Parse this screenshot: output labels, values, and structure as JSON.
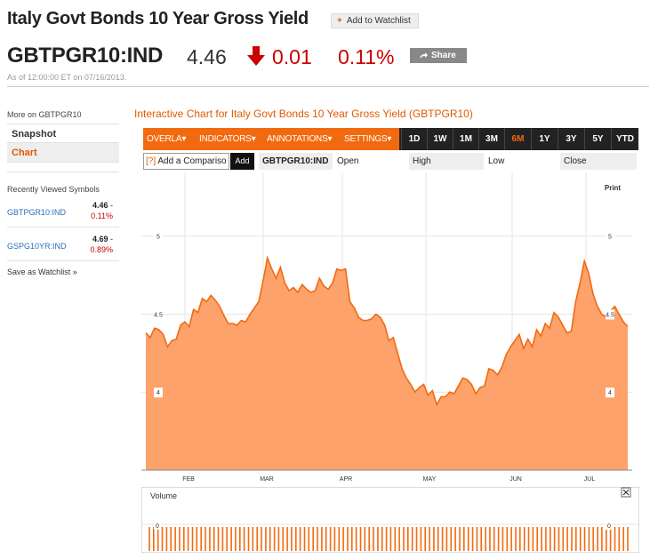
{
  "header": {
    "title": "Italy Govt Bonds 10 Year Gross Yield",
    "watchlist_label": "Add to Watchlist",
    "ticker": "GBTPGR10:IND",
    "price": "4.46",
    "change": "0.01",
    "change_pct": "0.11%",
    "change_direction": "down-arrow-icon",
    "share_label": "Share",
    "as_of": "As of 12:00:00 ET on 07/16/2013."
  },
  "sidebar": {
    "more_on": "More on GBTPGR10",
    "items": [
      {
        "label": "Snapshot"
      },
      {
        "label": "Chart"
      }
    ],
    "recent_title": "Recently Viewed Symbols",
    "recent": [
      {
        "symbol": "GBTPGR10:IND",
        "value": "4.46",
        "dash": " -",
        "change": "0.11%"
      },
      {
        "symbol": "GSPG10YR:IND",
        "value": "4.69",
        "dash": " -",
        "change": "0.89%"
      }
    ],
    "save_label": "Save as Watchlist",
    "save_icon": "double-chevron-right-icon"
  },
  "chart_panel": {
    "title": "Interactive Chart for Italy Govt Bonds 10 Year Gross Yield (GBTPGR10)",
    "menus": [
      "OVERLA",
      "INDICATORS",
      "ANNOTATIONS",
      "SETTINGS"
    ],
    "ranges": [
      "1D",
      "1W",
      "1M",
      "3M",
      "6M",
      "1Y",
      "3Y",
      "5Y",
      "YTD"
    ],
    "active_range": "6M",
    "compare_prefix": "[?]",
    "compare_placeholder": "Add a Compariso",
    "add_label": "Add",
    "symbol": "GBTPGR10:IND",
    "col_labels": [
      "Open",
      "High",
      "Low",
      "Close"
    ],
    "print_label": "Print",
    "volume_label": "Volume",
    "close_icon": "close-icon",
    "accent_color": "#f26a10"
  },
  "chart_data": {
    "type": "area",
    "x_ticks": [
      "FEB",
      "MAR",
      "APR",
      "MAY",
      "JUN",
      "JUL"
    ],
    "y_ticks": [
      "4",
      "4.5",
      "5"
    ],
    "ylim": [
      3.5,
      5.38
    ],
    "grid": true,
    "fill_color": "#fca26a",
    "line_color": "#f26a10",
    "values": [
      4.38,
      4.35,
      4.41,
      4.4,
      4.37,
      4.29,
      4.33,
      4.34,
      4.43,
      4.45,
      4.42,
      4.53,
      4.51,
      4.6,
      4.58,
      4.62,
      4.59,
      4.55,
      4.49,
      4.44,
      4.44,
      4.43,
      4.46,
      4.45,
      4.5,
      4.54,
      4.58,
      4.71,
      4.86,
      4.79,
      4.73,
      4.8,
      4.7,
      4.65,
      4.67,
      4.64,
      4.69,
      4.66,
      4.64,
      4.65,
      4.73,
      4.68,
      4.66,
      4.7,
      4.79,
      4.78,
      4.79,
      4.58,
      4.54,
      4.48,
      4.46,
      4.46,
      4.47,
      4.5,
      4.48,
      4.43,
      4.33,
      4.35,
      4.25,
      4.15,
      4.09,
      4.05,
      4.0,
      4.03,
      4.05,
      3.98,
      4.01,
      3.92,
      3.97,
      3.97,
      4.0,
      3.99,
      4.04,
      4.09,
      4.08,
      4.05,
      3.99,
      4.03,
      4.04,
      4.15,
      4.14,
      4.11,
      4.16,
      4.24,
      4.29,
      4.33,
      4.37,
      4.28,
      4.34,
      4.29,
      4.4,
      4.36,
      4.44,
      4.41,
      4.51,
      4.48,
      4.43,
      4.38,
      4.39,
      4.58,
      4.7,
      4.84,
      4.76,
      4.63,
      4.55,
      4.5,
      4.48,
      4.52,
      4.55,
      4.5,
      4.45,
      4.42
    ]
  },
  "volume_data": {
    "y_ticks": [
      "0"
    ],
    "bar_count": 112
  }
}
